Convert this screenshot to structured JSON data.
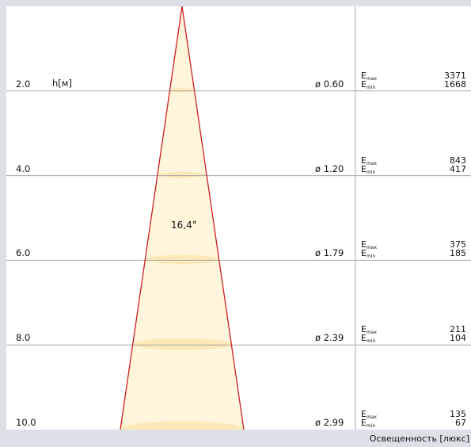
{
  "beam_angle": "16,4°",
  "height_unit": "h[м]",
  "emax_label": "E",
  "emax_sub": "max",
  "emin_label": "E",
  "emin_sub": "min",
  "footer": "Освещенность  [люкс]",
  "colors": {
    "cone_fill": "#fff6dc",
    "ellipse_fill": "#fde9b8",
    "cone_edge": "#cc1f1f",
    "grid_line": "#a8a8a8",
    "background": "#dde1e7"
  },
  "rows": [
    {
      "height": "2.0",
      "diameter": "ø 0.60",
      "emax": "3371",
      "emin": "1668"
    },
    {
      "height": "4.0",
      "diameter": "ø 1.20",
      "emax": "843",
      "emin": "417"
    },
    {
      "height": "6.0",
      "diameter": "ø 1.79",
      "emax": "375",
      "emin": "185"
    },
    {
      "height": "8.0",
      "diameter": "ø 2.39",
      "emax": "211",
      "emin": "104"
    },
    {
      "height": "10.0",
      "diameter": "ø 2.99",
      "emax": "135",
      "emin": "67"
    }
  ]
}
